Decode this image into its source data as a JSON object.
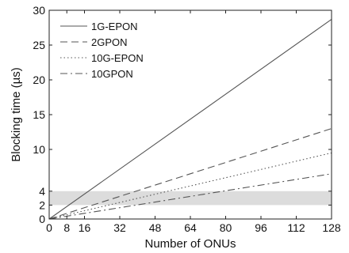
{
  "chart_data": {
    "type": "line",
    "title": "",
    "xlabel": "Number of ONUs",
    "ylabel": "Blocking time (µs)",
    "xlim": [
      0,
      128
    ],
    "ylim": [
      0,
      30
    ],
    "xticks": [
      0,
      8,
      16,
      32,
      48,
      64,
      80,
      96,
      112,
      128
    ],
    "yticks": [
      0,
      2,
      4,
      10,
      15,
      20,
      25,
      30
    ],
    "grid": false,
    "legend_position": "top-left",
    "shaded_band": {
      "y_from": 2,
      "y_to": 4,
      "color": "#dcdcdc"
    },
    "series": [
      {
        "name": "1G-EPON",
        "style": "solid",
        "color": "#555555",
        "x": [
          0,
          128
        ],
        "y": [
          0,
          28.7
        ]
      },
      {
        "name": "2GPON",
        "style": "dashed",
        "color": "#555555",
        "x": [
          0,
          128
        ],
        "y": [
          0,
          13.0
        ]
      },
      {
        "name": "10G-EPON",
        "style": "dotted",
        "color": "#555555",
        "x": [
          0,
          128
        ],
        "y": [
          0,
          9.5
        ]
      },
      {
        "name": "10GPON",
        "style": "dash-dot",
        "color": "#555555",
        "x": [
          0,
          128
        ],
        "y": [
          0,
          6.5
        ]
      }
    ]
  }
}
